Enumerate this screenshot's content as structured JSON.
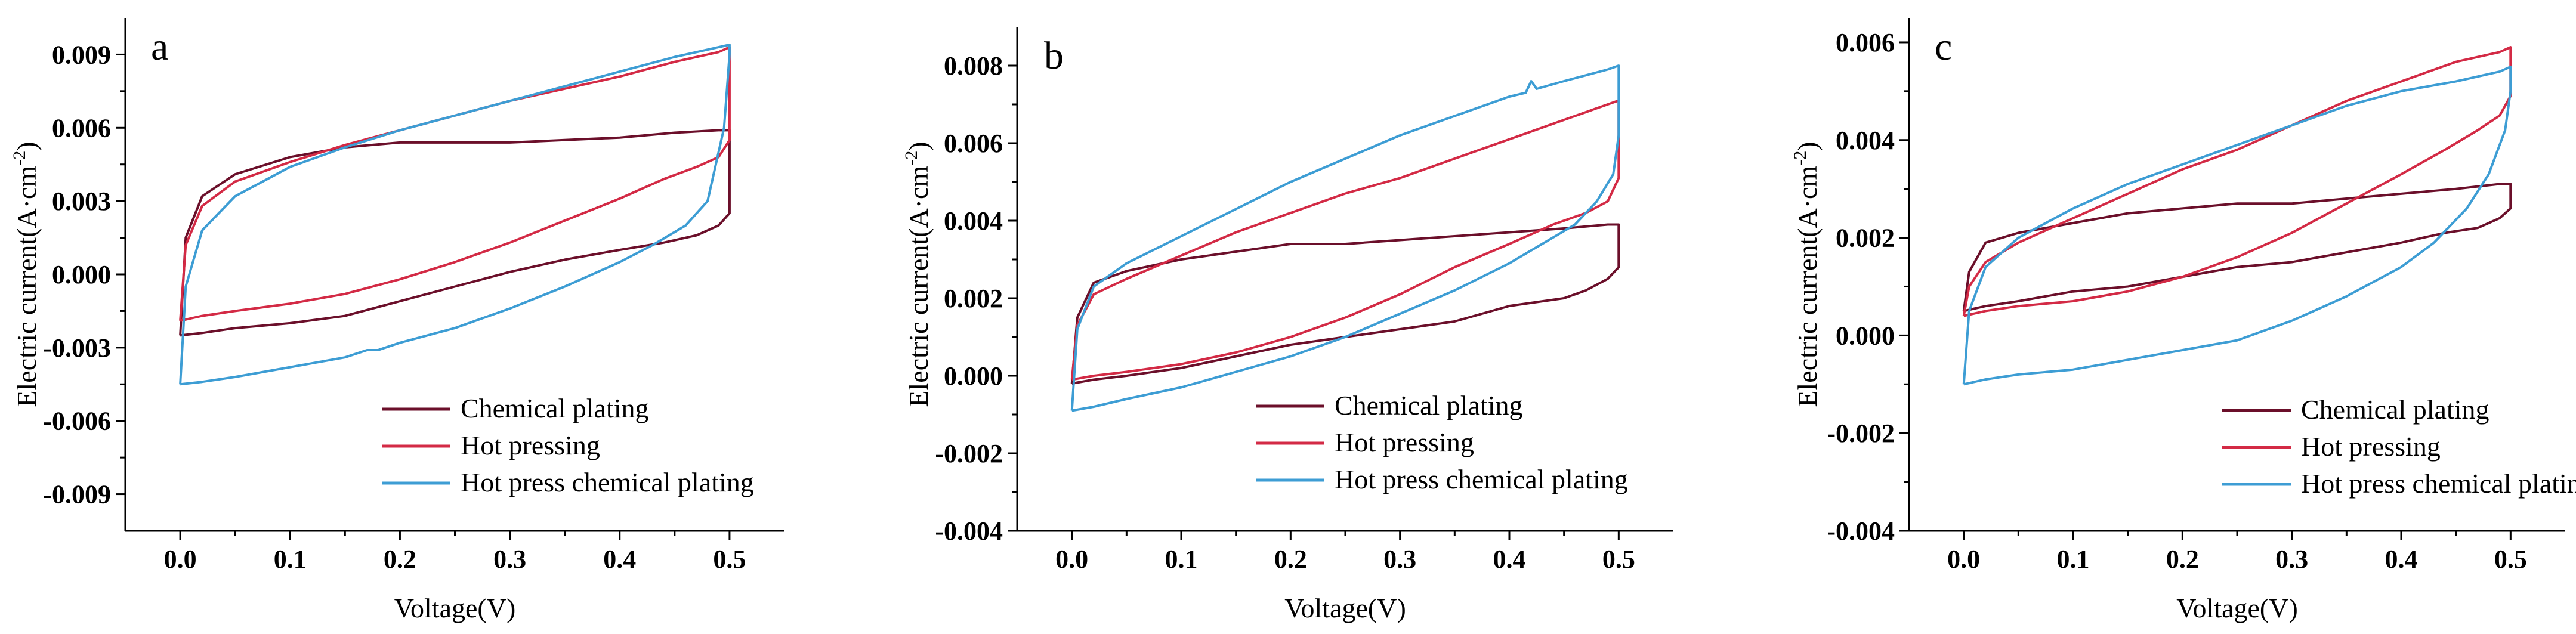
{
  "colors": {
    "chemical_plating": "#6b0f2a",
    "hot_pressing": "#d32a45",
    "hot_press_chemical_plating": "#3d9dd4"
  },
  "chart_data": [
    {
      "type": "line",
      "panel_label": "a",
      "xlabel": "Voltage(V)",
      "ylabel_main": "Electric current(A·cm",
      "ylabel_sup": "-2",
      "ylabel_close": ")",
      "xlim": [
        -0.05,
        0.55
      ],
      "ylim": [
        -0.0105,
        0.0105
      ],
      "xticks": [
        0.0,
        0.1,
        0.2,
        0.3,
        0.4,
        0.5
      ],
      "xtick_labels": [
        "0.0",
        "0.1",
        "0.2",
        "0.3",
        "0.4",
        "0.5"
      ],
      "yticks": [
        -0.009,
        -0.006,
        -0.003,
        0.0,
        0.003,
        0.006,
        0.009
      ],
      "ytick_labels": [
        "-0.009",
        "-0.006",
        "-0.003",
        "0.000",
        "0.003",
        "0.006",
        "0.009"
      ],
      "legend": {
        "position": "bottom-right",
        "entries": [
          "Chemical plating",
          "Hot pressing",
          "Hot press chemical plating"
        ]
      },
      "series": [
        {
          "name": "Chemical plating",
          "color_key": "chemical_plating",
          "x": [
            0.0,
            0.005,
            0.02,
            0.05,
            0.1,
            0.15,
            0.2,
            0.25,
            0.3,
            0.35,
            0.4,
            0.45,
            0.49,
            0.5,
            0.5,
            0.49,
            0.47,
            0.44,
            0.4,
            0.35,
            0.3,
            0.25,
            0.2,
            0.15,
            0.1,
            0.05,
            0.02,
            0.0,
            0.0
          ],
          "y": [
            -0.0025,
            0.0015,
            0.0032,
            0.0041,
            0.0048,
            0.0052,
            0.0054,
            0.0054,
            0.0054,
            0.0055,
            0.0056,
            0.0058,
            0.0059,
            0.0059,
            0.0025,
            0.002,
            0.0016,
            0.0013,
            0.001,
            0.0006,
            0.0001,
            -0.0005,
            -0.0011,
            -0.0017,
            -0.002,
            -0.0022,
            -0.0024,
            -0.0025,
            -0.0025
          ]
        },
        {
          "name": "Hot pressing",
          "color_key": "hot_pressing",
          "x": [
            0.0,
            0.005,
            0.02,
            0.05,
            0.1,
            0.15,
            0.2,
            0.25,
            0.3,
            0.35,
            0.4,
            0.45,
            0.49,
            0.5,
            0.5,
            0.49,
            0.47,
            0.44,
            0.4,
            0.35,
            0.3,
            0.25,
            0.2,
            0.15,
            0.1,
            0.05,
            0.02,
            0.0,
            0.0
          ],
          "y": [
            -0.0019,
            0.0012,
            0.0028,
            0.0038,
            0.0046,
            0.0053,
            0.0059,
            0.0065,
            0.0071,
            0.0076,
            0.0081,
            0.0087,
            0.0091,
            0.0093,
            0.0055,
            0.0048,
            0.0044,
            0.0039,
            0.0031,
            0.0022,
            0.0013,
            0.0005,
            -0.0002,
            -0.0008,
            -0.0012,
            -0.0015,
            -0.0017,
            -0.0019,
            -0.0019
          ]
        },
        {
          "name": "Hot press chemical plating",
          "color_key": "hot_press_chemical_plating",
          "x": [
            0.0,
            0.005,
            0.02,
            0.05,
            0.1,
            0.15,
            0.2,
            0.25,
            0.3,
            0.35,
            0.4,
            0.45,
            0.49,
            0.5,
            0.5,
            0.495,
            0.48,
            0.46,
            0.43,
            0.4,
            0.35,
            0.3,
            0.25,
            0.2,
            0.18,
            0.17,
            0.15,
            0.1,
            0.05,
            0.02,
            0.0,
            0.0
          ],
          "y": [
            -0.0045,
            -0.0005,
            0.0018,
            0.0032,
            0.0044,
            0.0052,
            0.0059,
            0.0065,
            0.0071,
            0.0077,
            0.0083,
            0.0089,
            0.0093,
            0.0094,
            0.009,
            0.006,
            0.003,
            0.002,
            0.0012,
            0.0005,
            -0.0005,
            -0.0014,
            -0.0022,
            -0.0028,
            -0.0031,
            -0.0031,
            -0.0034,
            -0.0038,
            -0.0042,
            -0.0044,
            -0.0045,
            -0.0045
          ]
        }
      ]
    },
    {
      "type": "line",
      "panel_label": "b",
      "xlabel": "Voltage(V)",
      "ylabel_main": "Electric current(A·cm",
      "ylabel_sup": "-2",
      "ylabel_close": ")",
      "xlim": [
        -0.05,
        0.55
      ],
      "ylim": [
        -0.004,
        0.009
      ],
      "xticks": [
        0.0,
        0.1,
        0.2,
        0.3,
        0.4,
        0.5
      ],
      "xtick_labels": [
        "0.0",
        "0.1",
        "0.2",
        "0.3",
        "0.4",
        "0.5"
      ],
      "yticks": [
        -0.004,
        -0.002,
        0.0,
        0.002,
        0.004,
        0.006,
        0.008
      ],
      "ytick_labels": [
        "-0.004",
        "-0.002",
        "0.000",
        "0.002",
        "0.004",
        "0.006",
        "0.008"
      ],
      "legend": {
        "position": "bottom-right",
        "entries": [
          "Chemical plating",
          "Hot pressing",
          "Hot press chemical plating"
        ]
      },
      "series": [
        {
          "name": "Chemical plating",
          "color_key": "chemical_plating",
          "x": [
            0.0,
            0.005,
            0.02,
            0.05,
            0.1,
            0.15,
            0.2,
            0.25,
            0.3,
            0.35,
            0.4,
            0.45,
            0.49,
            0.5,
            0.5,
            0.49,
            0.47,
            0.45,
            0.4,
            0.35,
            0.3,
            0.25,
            0.2,
            0.15,
            0.1,
            0.05,
            0.02,
            0.0,
            0.0
          ],
          "y": [
            -0.0002,
            0.0015,
            0.0024,
            0.0027,
            0.003,
            0.0032,
            0.0034,
            0.0034,
            0.0035,
            0.0036,
            0.0037,
            0.0038,
            0.0039,
            0.0039,
            0.0028,
            0.0025,
            0.0022,
            0.002,
            0.0018,
            0.0014,
            0.0012,
            0.001,
            0.0008,
            0.0005,
            0.0002,
            0.0,
            -0.0001,
            -0.0002,
            -0.0002
          ]
        },
        {
          "name": "Hot pressing",
          "color_key": "hot_pressing",
          "x": [
            0.0,
            0.005,
            0.02,
            0.05,
            0.1,
            0.15,
            0.2,
            0.25,
            0.3,
            0.35,
            0.4,
            0.45,
            0.49,
            0.5,
            0.5,
            0.49,
            0.47,
            0.44,
            0.4,
            0.35,
            0.3,
            0.25,
            0.2,
            0.15,
            0.1,
            0.05,
            0.02,
            0.0,
            0.0
          ],
          "y": [
            -0.0001,
            0.0013,
            0.0021,
            0.0025,
            0.0031,
            0.0037,
            0.0042,
            0.0047,
            0.0051,
            0.0056,
            0.0061,
            0.0066,
            0.007,
            0.0071,
            0.0051,
            0.0045,
            0.0042,
            0.0039,
            0.0034,
            0.0028,
            0.0021,
            0.0015,
            0.001,
            0.0006,
            0.0003,
            0.0001,
            0.0,
            -0.0001,
            -0.0001
          ]
        },
        {
          "name": "Hot press chemical plating",
          "color_key": "hot_press_chemical_plating",
          "x": [
            0.0,
            0.005,
            0.02,
            0.05,
            0.1,
            0.15,
            0.2,
            0.25,
            0.3,
            0.35,
            0.4,
            0.415,
            0.42,
            0.425,
            0.45,
            0.49,
            0.5,
            0.5,
            0.495,
            0.48,
            0.46,
            0.43,
            0.4,
            0.35,
            0.3,
            0.25,
            0.2,
            0.15,
            0.1,
            0.05,
            0.02,
            0.0,
            0.0
          ],
          "y": [
            -0.0009,
            0.0012,
            0.0023,
            0.0029,
            0.0036,
            0.0043,
            0.005,
            0.0056,
            0.0062,
            0.0067,
            0.0072,
            0.0073,
            0.0076,
            0.0074,
            0.0076,
            0.0079,
            0.008,
            0.0062,
            0.0052,
            0.0045,
            0.0039,
            0.0034,
            0.0029,
            0.0022,
            0.0016,
            0.001,
            0.0005,
            0.0001,
            -0.0003,
            -0.0006,
            -0.0008,
            -0.0009,
            -0.0009
          ]
        }
      ]
    },
    {
      "type": "line",
      "panel_label": "c",
      "xlabel": "Voltage(V)",
      "ylabel_main": "Electric current(A·cm",
      "ylabel_sup": "-2",
      "ylabel_close": ")",
      "xlim": [
        -0.05,
        0.55
      ],
      "ylim": [
        -0.004,
        0.0065
      ],
      "xticks": [
        0.0,
        0.1,
        0.2,
        0.3,
        0.4,
        0.5
      ],
      "xtick_labels": [
        "0.0",
        "0.1",
        "0.2",
        "0.3",
        "0.4",
        "0.5"
      ],
      "yticks": [
        -0.004,
        -0.002,
        0.0,
        0.002,
        0.004,
        0.006
      ],
      "ytick_labels": [
        "-0.004",
        "-0.002",
        "0.000",
        "0.002",
        "0.004",
        "0.006"
      ],
      "legend": {
        "position": "bottom-right",
        "entries": [
          "Chemical plating",
          "Hot pressing",
          "Hot press chemical plating"
        ]
      },
      "series": [
        {
          "name": "Chemical plating",
          "color_key": "chemical_plating",
          "x": [
            0.0,
            0.005,
            0.02,
            0.05,
            0.1,
            0.15,
            0.2,
            0.25,
            0.3,
            0.35,
            0.4,
            0.45,
            0.49,
            0.5,
            0.5,
            0.49,
            0.47,
            0.44,
            0.4,
            0.35,
            0.3,
            0.25,
            0.2,
            0.15,
            0.1,
            0.05,
            0.02,
            0.0,
            0.0
          ],
          "y": [
            0.0005,
            0.0013,
            0.0019,
            0.0021,
            0.0023,
            0.0025,
            0.0026,
            0.0027,
            0.0027,
            0.0028,
            0.0029,
            0.003,
            0.0031,
            0.0031,
            0.0026,
            0.0024,
            0.0022,
            0.0021,
            0.0019,
            0.0017,
            0.0015,
            0.0014,
            0.0012,
            0.001,
            0.0009,
            0.0007,
            0.0006,
            0.0005,
            0.0005
          ]
        },
        {
          "name": "Hot pressing",
          "color_key": "hot_pressing",
          "x": [
            0.0,
            0.005,
            0.02,
            0.05,
            0.1,
            0.15,
            0.2,
            0.25,
            0.3,
            0.35,
            0.4,
            0.45,
            0.49,
            0.5,
            0.5,
            0.49,
            0.47,
            0.44,
            0.4,
            0.35,
            0.3,
            0.25,
            0.2,
            0.15,
            0.1,
            0.05,
            0.02,
            0.0,
            0.0
          ],
          "y": [
            0.0004,
            0.001,
            0.0015,
            0.0019,
            0.0024,
            0.0029,
            0.0034,
            0.0038,
            0.0043,
            0.0048,
            0.0052,
            0.0056,
            0.0058,
            0.0059,
            0.0049,
            0.0045,
            0.0042,
            0.0038,
            0.0033,
            0.0027,
            0.0021,
            0.0016,
            0.0012,
            0.0009,
            0.0007,
            0.0006,
            0.0005,
            0.0004,
            0.0004
          ]
        },
        {
          "name": "Hot press chemical plating",
          "color_key": "hot_press_chemical_plating",
          "x": [
            0.0,
            0.005,
            0.02,
            0.05,
            0.1,
            0.15,
            0.2,
            0.25,
            0.3,
            0.35,
            0.4,
            0.45,
            0.49,
            0.5,
            0.5,
            0.495,
            0.48,
            0.46,
            0.43,
            0.4,
            0.35,
            0.3,
            0.25,
            0.2,
            0.15,
            0.1,
            0.05,
            0.02,
            0.0,
            0.0
          ],
          "y": [
            -0.001,
            0.0005,
            0.0014,
            0.002,
            0.0026,
            0.0031,
            0.0035,
            0.0039,
            0.0043,
            0.0047,
            0.005,
            0.0052,
            0.0054,
            0.0055,
            0.005,
            0.0042,
            0.0033,
            0.0026,
            0.0019,
            0.0014,
            0.0008,
            0.0003,
            -0.0001,
            -0.0003,
            -0.0005,
            -0.0007,
            -0.0008,
            -0.0009,
            -0.001,
            -0.001
          ]
        }
      ]
    }
  ]
}
